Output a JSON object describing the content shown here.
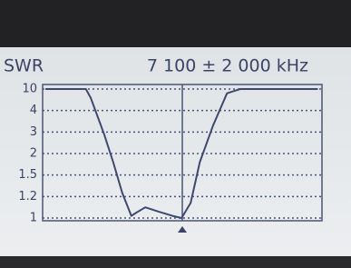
{
  "chart_data": {
    "type": "line",
    "title": "SWR",
    "subtitle": "7 100 ± 2 000 kHz",
    "x": [
      5140,
      5720,
      5790,
      5980,
      6110,
      6240,
      6370,
      6440,
      6570,
      6760,
      6960,
      7090,
      7220,
      7350,
      7540,
      7740,
      7930,
      9040
    ],
    "values": [
      10,
      10,
      7.5,
      2.9,
      1.8,
      1.25,
      1.02,
      1.05,
      1.1,
      1.06,
      1.02,
      1.0,
      1.14,
      1.8,
      3.3,
      8.8,
      10,
      10
    ],
    "color": "#3d4a6e",
    "xlim": [
      5100,
      9100
    ],
    "marker": 7100,
    "ylim": [
      1,
      10
    ],
    "yticks": [
      1,
      1.2,
      1.5,
      2,
      3,
      4,
      10
    ],
    "grid": true
  }
}
